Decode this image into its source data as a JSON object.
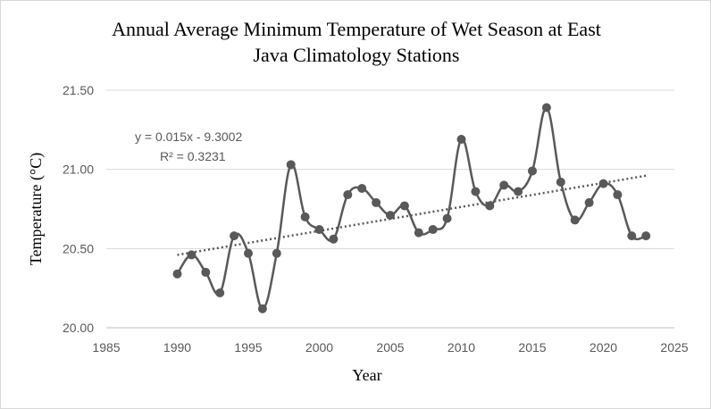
{
  "chart_data": {
    "type": "line",
    "title": [
      "Annual Average  Minimum Temperature  of Wet Season at East",
      "Java Climatology  Stations"
    ],
    "xlabel": "Year",
    "ylabel": "Temperature (°C)",
    "xlim": [
      1985,
      2025
    ],
    "ylim": [
      20.0,
      21.5
    ],
    "x_ticks": [
      "1985",
      "1990",
      "1995",
      "2000",
      "2005",
      "2010",
      "2015",
      "2020",
      "2025"
    ],
    "y_ticks": [
      "20.00",
      "20.50",
      "21.00",
      "21.50"
    ],
    "grid": "horizontal",
    "legend": "none",
    "x": [
      1990,
      1991,
      1992,
      1993,
      1994,
      1995,
      1996,
      1997,
      1998,
      1999,
      2000,
      2001,
      2002,
      2003,
      2004,
      2005,
      2006,
      2007,
      2008,
      2009,
      2010,
      2011,
      2012,
      2013,
      2014,
      2015,
      2016,
      2017,
      2018,
      2019,
      2020,
      2021,
      2022,
      2023
    ],
    "series": [
      {
        "values": [
          20.34,
          20.46,
          20.35,
          20.22,
          20.58,
          20.47,
          20.12,
          20.47,
          21.03,
          20.7,
          20.62,
          20.56,
          20.84,
          20.88,
          20.79,
          20.71,
          20.77,
          20.6,
          20.62,
          20.69,
          21.19,
          20.86,
          20.77,
          20.9,
          20.86,
          20.99,
          21.39,
          20.92,
          20.68,
          20.79,
          20.91,
          20.84,
          20.58,
          20.58
        ],
        "color": "#595959"
      }
    ],
    "trendline": {
      "x": [
        1990,
        2023
      ],
      "y": [
        20.46,
        20.96
      ],
      "style": "dotted",
      "color": "#595959",
      "equation": "y = 0.015x - 9.3002",
      "r_squared": "R² = 0.3231"
    }
  }
}
